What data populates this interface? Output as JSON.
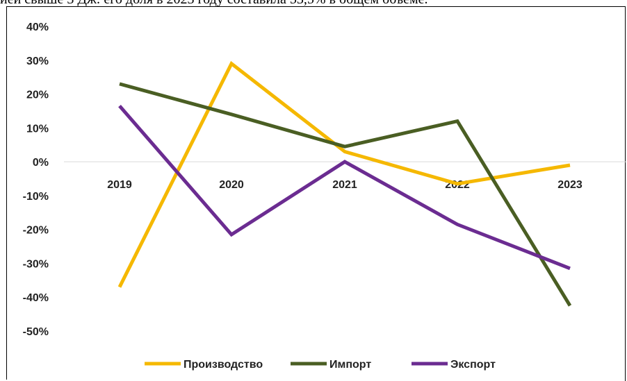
{
  "page": {
    "top_text": "ией свыше 3 Дж: его доля в 2023 году составила 53,5% в общем объеме."
  },
  "chart_data": {
    "type": "line",
    "title": "",
    "xlabel": "",
    "ylabel": "",
    "categories": [
      "2019",
      "2020",
      "2021",
      "2022",
      "2023"
    ],
    "yticks": [
      "40%",
      "30%",
      "20%",
      "10%",
      "0%",
      "-10%",
      "-20%",
      "-30%",
      "-40%",
      "-50%"
    ],
    "ylim": [
      -50,
      40
    ],
    "grid": false,
    "legend_position": "bottom",
    "series": [
      {
        "name": "Производство",
        "color": "#F5B800",
        "values": [
          -37,
          29,
          3,
          -6.5,
          -1
        ]
      },
      {
        "name": "Импорт",
        "color": "#4A5E23",
        "values": [
          23,
          14,
          4.5,
          12,
          -42.5
        ]
      },
      {
        "name": "Экспорт",
        "color": "#6B2C91",
        "values": [
          16.5,
          -21.5,
          0,
          -18.5,
          -31.5
        ]
      }
    ]
  }
}
